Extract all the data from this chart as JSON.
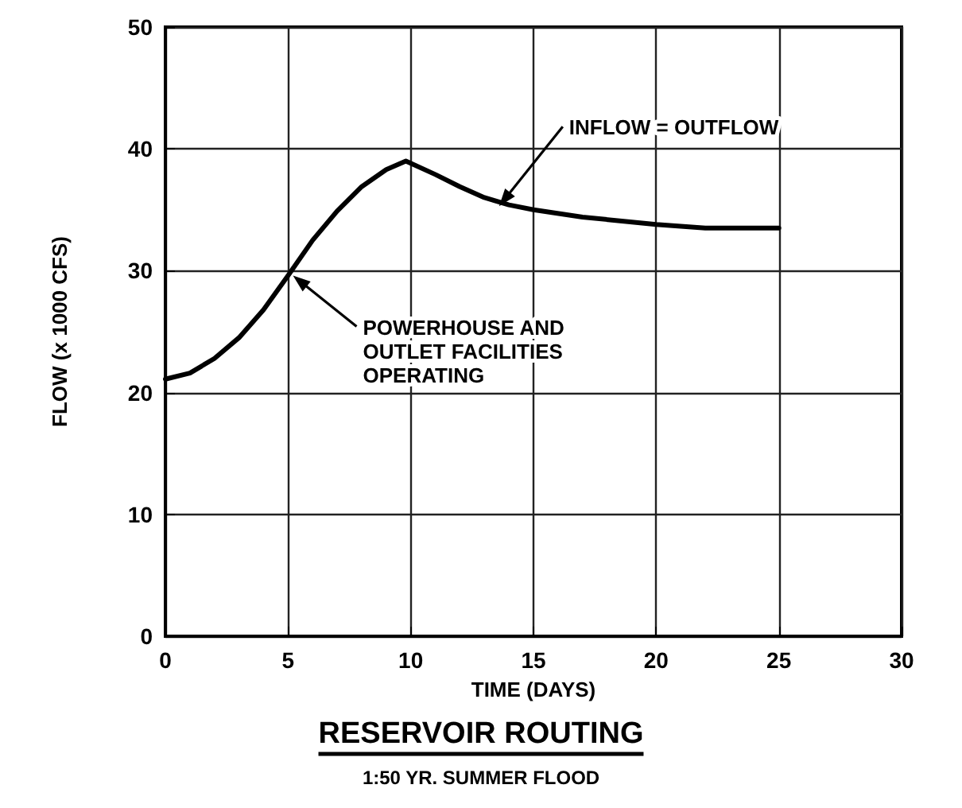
{
  "chart_data": {
    "type": "line",
    "title": "RESERVOIR ROUTING",
    "subtitle": "1:50 YR. SUMMER FLOOD",
    "xlabel": "TIME (DAYS)",
    "ylabel": "FLOW (x 1000 CFS)",
    "x": [
      0,
      1,
      2,
      3,
      4,
      5,
      6,
      7,
      8,
      9,
      9.8,
      11,
      12,
      13,
      14,
      15,
      17,
      20,
      22,
      25
    ],
    "series": [
      {
        "color": "#000000",
        "values": [
          21.1,
          21.6,
          22.8,
          24.5,
          26.8,
          29.6,
          32.5,
          34.9,
          36.9,
          38.3,
          39.0,
          37.9,
          36.9,
          36.0,
          35.4,
          35.0,
          34.4,
          33.8,
          33.5,
          33.5
        ]
      }
    ],
    "xlim": [
      0,
      30
    ],
    "xticks": [
      0,
      5,
      10,
      15,
      20,
      25,
      30
    ],
    "ylim": [
      0,
      50
    ],
    "yticks": [
      0,
      10,
      20,
      30,
      40,
      50
    ],
    "annotations": [
      {
        "text": "INFLOW = OUTFLOW",
        "x": 13.6,
        "y": 35.3
      },
      {
        "text": "POWERHOUSE AND\nOUTLET FACILITIES\nOPERATING",
        "x": 5.2,
        "y": 29.6
      }
    ],
    "grid": true,
    "marker": "none",
    "line_style": "solid"
  }
}
